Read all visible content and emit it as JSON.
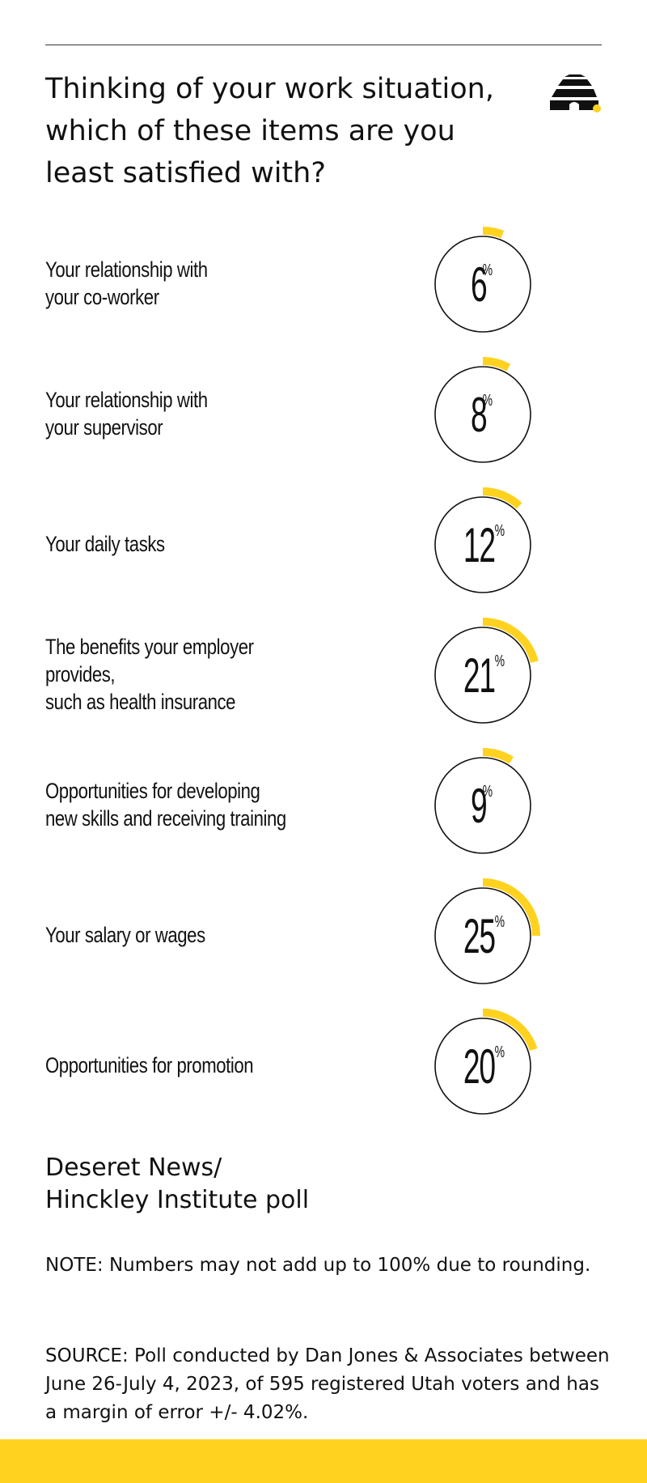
{
  "title": "Thinking of your work situation, which of these items are you least satisfied with?",
  "colors": {
    "accent": "#ffd21f",
    "ring": "#111111",
    "text": "#111111"
  },
  "logo": {
    "icon": "beehive-icon"
  },
  "chart_data": {
    "type": "table",
    "value_unit": "%",
    "categories": [
      "Your relationship with\nyour co-worker",
      "Your relationship with\nyour supervisor",
      "Your daily tasks",
      "The benefits your employer provides,\nsuch as health insurance",
      "Opportunities for developing\nnew skills and receiving training",
      "Your salary or wages",
      "Opportunities for promotion"
    ],
    "values": [
      6,
      8,
      12,
      21,
      9,
      25,
      20
    ],
    "max": 100
  },
  "footer": {
    "source_title": "Deseret News/\nHinckley Institute poll",
    "note": "NOTE: Numbers may not add up to 100% due to rounding.",
    "source": "SOURCE: Poll conducted by Dan Jones & Associates between June 26-July 4, 2023, of 595 registered Utah voters and has a margin of error +/- 4.02%."
  }
}
